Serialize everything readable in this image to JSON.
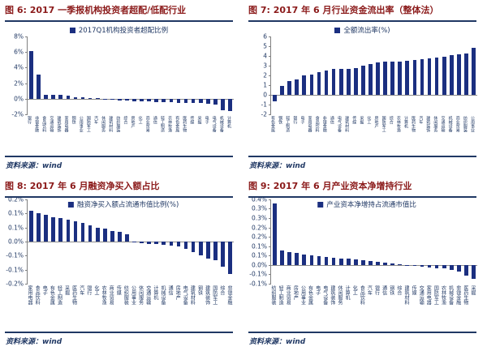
{
  "page": {
    "background": "#ffffff"
  },
  "colors": {
    "bar": "#1b2f80",
    "title_text": "#8b1a1a",
    "rule": "#203864",
    "navy_text": "#203864",
    "axis_line": "#808080"
  },
  "source_label": "资料来源：wind",
  "chart_data": [
    {
      "id": "fig6",
      "type": "bar",
      "title": "图 6: 2017 一季报机构投资者超配/低配行业",
      "legend": "2017Q1机构投资者超配比例",
      "legend_position": "above",
      "unit": "%",
      "ylim": [
        -2,
        8
      ],
      "grid": false,
      "yticks": [
        {
          "v": 8,
          "label": "8%"
        },
        {
          "v": 6,
          "label": "6%"
        },
        {
          "v": 4,
          "label": "4%"
        },
        {
          "v": 2,
          "label": "2%"
        },
        {
          "v": 0,
          "label": "0%"
        },
        {
          "v": -2,
          "label": "-2%"
        }
      ],
      "categories": [
        "银行",
        "非银金融",
        "食品饮料",
        "交通运输",
        "建筑装饰",
        "家用电器",
        "钢铁",
        "公用事业",
        "国防军工",
        "汽车",
        "休闲服务",
        "建筑材料",
        "纺织服装",
        "综合",
        "房地产",
        "化工",
        "商业贸易",
        "通信",
        "轻工制造",
        "农林牧渔",
        "有色金属",
        "医药生物",
        "传媒",
        "采掘",
        "电子",
        "电气设备",
        "机械设备",
        "计算机"
      ],
      "values": [
        6.1,
        3.1,
        0.5,
        0.5,
        0.45,
        0.4,
        0.2,
        0.15,
        0.1,
        0.05,
        -0.1,
        -0.15,
        -0.2,
        -0.25,
        -0.3,
        -0.3,
        -0.35,
        -0.4,
        -0.45,
        -0.45,
        -0.5,
        -0.5,
        -0.55,
        -0.6,
        -0.65,
        -0.8,
        -1.5,
        -1.6
      ]
    },
    {
      "id": "fig7",
      "type": "bar",
      "title": "图 7: 2017 年 6 月行业资金流出率（整体法）",
      "legend": "全额流出率(%)",
      "legend_position": "above",
      "unit": "%",
      "ylim": [
        -2,
        6
      ],
      "grid": false,
      "yticks": [
        {
          "v": 6,
          "label": "6"
        },
        {
          "v": 5,
          "label": "5"
        },
        {
          "v": 4,
          "label": "4"
        },
        {
          "v": 3,
          "label": "3"
        },
        {
          "v": 2,
          "label": "2"
        },
        {
          "v": 1,
          "label": "1"
        },
        {
          "v": 0,
          "label": "0"
        },
        {
          "v": -1,
          "label": "-1"
        },
        {
          "v": -2,
          "label": "-2"
        }
      ],
      "categories": [
        "有色金属",
        "钢铁",
        "轻工制造",
        "银行",
        "电子",
        "家用电器",
        "食品饮料",
        "非银金融",
        "通信",
        "电气设备",
        "建筑材料",
        "传媒",
        "采掘",
        "化工",
        "房地产",
        "国防军工",
        "综合",
        "农林牧渔",
        "计算机",
        "医药生物",
        "汽车",
        "建筑装饰",
        "休闲服务",
        "交通运输",
        "机械设备",
        "商业贸易",
        "纺织服装",
        "公用事业"
      ],
      "values": [
        -0.7,
        0.9,
        1.4,
        1.6,
        2.0,
        2.1,
        2.3,
        2.5,
        2.65,
        2.65,
        2.7,
        2.75,
        3.0,
        3.2,
        3.35,
        3.4,
        3.45,
        3.45,
        3.5,
        3.6,
        3.65,
        3.75,
        3.85,
        3.9,
        4.1,
        4.2,
        4.25,
        4.8
      ]
    },
    {
      "id": "fig8",
      "type": "bar",
      "title": "图 8: 2017 年 6 月融资净买入额占比",
      "legend": "融资净买入额占流通市值比例(%)",
      "legend_position": "inside-top",
      "unit": "%",
      "ylim": [
        -0.2,
        0.2
      ],
      "grid": false,
      "yticks": [
        {
          "v": 0.2,
          "label": "0.2%"
        },
        {
          "v": 0.1333,
          "label": "0.1%"
        },
        {
          "v": 0.0667,
          "label": "0.1%"
        },
        {
          "v": 0,
          "label": "0.0%"
        },
        {
          "v": -0.0667,
          "label": "-0.1%"
        },
        {
          "v": -0.1333,
          "label": "-0.1%"
        },
        {
          "v": -0.2,
          "label": "-0.2%"
        }
      ],
      "categories": [
        "家用电器",
        "食品饮料",
        "电子",
        "有色金属",
        "轻工制造",
        "采掘",
        "医药生物",
        "汽车",
        "银行",
        "化工",
        "农林牧渔",
        "商业贸易",
        "传媒",
        "纺织服装",
        "公用事业",
        "休闲服务",
        "交通运输",
        "计算机",
        "机械设备",
        "通信",
        "房地产",
        "电气设备",
        "建筑材料",
        "钢铁",
        "建筑装饰",
        "国防军工",
        "综合",
        "非银金融"
      ],
      "values": [
        0.145,
        0.135,
        0.125,
        0.115,
        0.11,
        0.105,
        0.095,
        0.09,
        0.075,
        0.065,
        0.06,
        0.05,
        0.045,
        0.035,
        -0.005,
        -0.008,
        -0.01,
        -0.012,
        -0.015,
        -0.02,
        -0.025,
        -0.035,
        -0.05,
        -0.065,
        -0.08,
        -0.09,
        -0.12,
        -0.155
      ]
    },
    {
      "id": "fig9",
      "type": "bar",
      "title": "图 9: 2017 年 6 月产业资本净增持行业",
      "legend": "产业资本净增持占流通市值比",
      "legend_position": "inside-top",
      "unit": "%",
      "ylim": [
        -0.1,
        0.35
      ],
      "grid": false,
      "yticks": [
        {
          "v": 0.35,
          "label": "0.4%"
        },
        {
          "v": 0.3,
          "label": "0.3%"
        },
        {
          "v": 0.25,
          "label": "0.3%"
        },
        {
          "v": 0.2,
          "label": "0.2%"
        },
        {
          "v": 0.15,
          "label": "0.2%"
        },
        {
          "v": 0.1,
          "label": "0.1%"
        },
        {
          "v": 0.05,
          "label": "0.1%"
        },
        {
          "v": 0.0,
          "label": "0.0%"
        },
        {
          "v": -0.05,
          "label": "-0.1%"
        },
        {
          "v": -0.1,
          "label": "-0.1%"
        }
      ],
      "categories": [
        "纺织服装",
        "轻工制造",
        "商业贸易",
        "房地产",
        "公用事业",
        "有色金属",
        "电子",
        "电气设备",
        "建筑装饰",
        "休闲服务",
        "计算机",
        "化工",
        "食品饮料",
        "汽车",
        "银行",
        "通信",
        "钢铁",
        "综合",
        "建筑材料",
        "传媒",
        "交通运输",
        "家用电器",
        "国防军工",
        "农林牧渔",
        "机械设备",
        "非银金融",
        "医药生物",
        "采掘"
      ],
      "values": [
        0.33,
        0.078,
        0.07,
        0.063,
        0.057,
        0.052,
        0.048,
        0.043,
        0.04,
        0.036,
        0.032,
        0.028,
        0.024,
        0.02,
        0.016,
        0.012,
        0.008,
        0.004,
        -0.004,
        -0.007,
        -0.01,
        -0.013,
        -0.016,
        -0.02,
        -0.025,
        -0.035,
        -0.055,
        -0.075
      ]
    }
  ]
}
